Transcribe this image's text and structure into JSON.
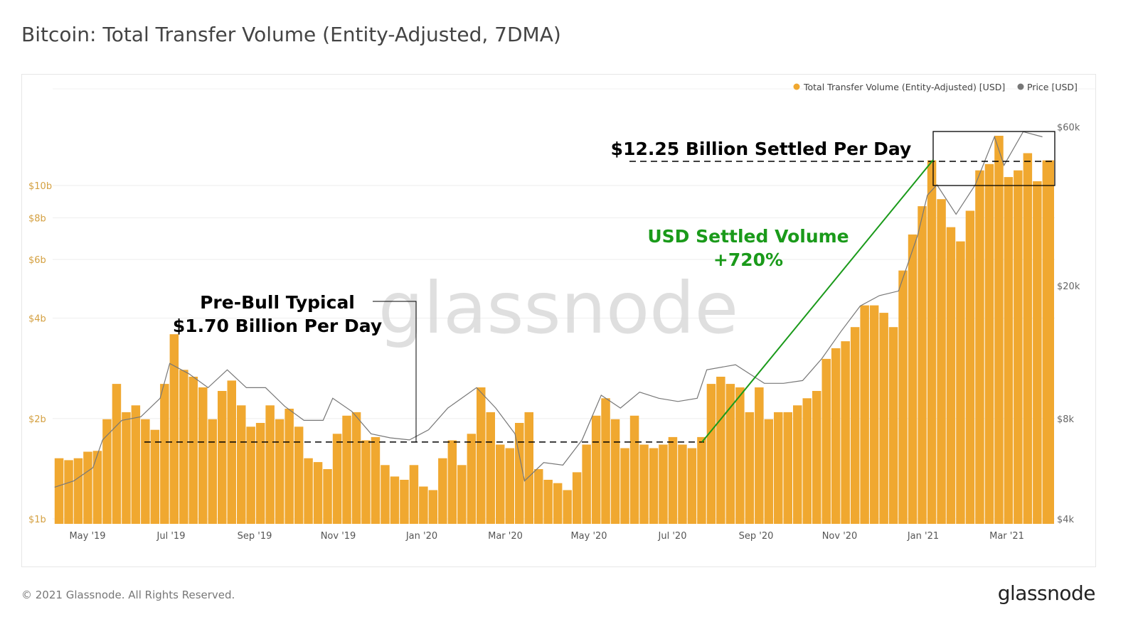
{
  "title": "Bitcoin: Total Transfer Volume (Entity-Adjusted, 7DMA)",
  "footer": "© 2021 Glassnode. All Rights Reserved.",
  "logo": "glassnode",
  "watermark": "glassnode",
  "colors": {
    "volume": "#f0a830",
    "price": "#777777",
    "annotation_green": "#1a9a1a",
    "annotation_black": "#000000"
  },
  "chart_data": {
    "type": "bar",
    "title": "Bitcoin: Total Transfer Volume (Entity-Adjusted, 7DMA)",
    "legend": {
      "placement": "top-right",
      "entries": [
        "Total Transfer Volume (Entity-Adjusted) [USD]",
        "Price [USD]"
      ]
    },
    "x_ticks": [
      "May '19",
      "Jul '19",
      "Sep '19",
      "Nov '19",
      "Jan '20",
      "Mar '20",
      "May '20",
      "Jul '20",
      "Sep '20",
      "Nov '20",
      "Jan '21",
      "Mar '21"
    ],
    "y_left": {
      "scale": "log",
      "range_billions": [
        1,
        10
      ],
      "ticks": [
        "$1b",
        "$2b",
        "$4b",
        "$6b",
        "$8b",
        "$10b"
      ],
      "tick_values": [
        1,
        2,
        4,
        6,
        8,
        10
      ]
    },
    "y_right": {
      "scale": "log",
      "range_thousands": [
        4,
        60
      ],
      "ticks": [
        "$4k",
        "$8k",
        "$20k",
        "$60k"
      ],
      "tick_values": [
        4,
        8,
        20,
        60
      ]
    },
    "grid": true,
    "volume_series": {
      "name": "Total Transfer Volume (Entity-Adjusted) [USD]",
      "unit": "billion USD",
      "points": [
        [
          "2019-04-07",
          1.52
        ],
        [
          "2019-04-14",
          1.5
        ],
        [
          "2019-04-21",
          1.52
        ],
        [
          "2019-04-28",
          1.59
        ],
        [
          "2019-05-05",
          1.6
        ],
        [
          "2019-05-12",
          1.99
        ],
        [
          "2019-05-19",
          2.54
        ],
        [
          "2019-05-26",
          2.09
        ],
        [
          "2019-06-02",
          2.19
        ],
        [
          "2019-06-09",
          1.99
        ],
        [
          "2019-06-16",
          1.85
        ],
        [
          "2019-06-23",
          2.54
        ],
        [
          "2019-06-30",
          3.58
        ],
        [
          "2019-07-07",
          2.8
        ],
        [
          "2019-07-14",
          2.67
        ],
        [
          "2019-07-21",
          2.48
        ],
        [
          "2019-07-28",
          1.99
        ],
        [
          "2019-08-04",
          2.42
        ],
        [
          "2019-08-11",
          2.6
        ],
        [
          "2019-08-18",
          2.19
        ],
        [
          "2019-08-25",
          1.89
        ],
        [
          "2019-09-01",
          1.94
        ],
        [
          "2019-09-08",
          2.19
        ],
        [
          "2019-09-15",
          1.99
        ],
        [
          "2019-09-22",
          2.14
        ],
        [
          "2019-09-29",
          1.89
        ],
        [
          "2019-10-06",
          1.52
        ],
        [
          "2019-10-13",
          1.48
        ],
        [
          "2019-10-20",
          1.41
        ],
        [
          "2019-10-27",
          1.8
        ],
        [
          "2019-11-03",
          2.04
        ],
        [
          "2019-11-10",
          2.09
        ],
        [
          "2019-11-17",
          1.72
        ],
        [
          "2019-11-24",
          1.76
        ],
        [
          "2019-12-01",
          1.45
        ],
        [
          "2019-12-08",
          1.34
        ],
        [
          "2019-12-15",
          1.31
        ],
        [
          "2019-12-22",
          1.45
        ],
        [
          "2019-12-29",
          1.25
        ],
        [
          "2020-01-05",
          1.22
        ],
        [
          "2020-01-12",
          1.52
        ],
        [
          "2020-01-19",
          1.72
        ],
        [
          "2020-01-26",
          1.45
        ],
        [
          "2020-02-02",
          1.8
        ],
        [
          "2020-02-09",
          2.48
        ],
        [
          "2020-02-16",
          2.09
        ],
        [
          "2020-02-23",
          1.67
        ],
        [
          "2020-03-01",
          1.63
        ],
        [
          "2020-03-08",
          1.94
        ],
        [
          "2020-03-15",
          2.09
        ],
        [
          "2020-03-22",
          1.41
        ],
        [
          "2020-03-29",
          1.31
        ],
        [
          "2020-04-05",
          1.28
        ],
        [
          "2020-04-12",
          1.22
        ],
        [
          "2020-04-19",
          1.38
        ],
        [
          "2020-04-26",
          1.67
        ],
        [
          "2020-05-03",
          2.04
        ],
        [
          "2020-05-10",
          2.3
        ],
        [
          "2020-05-17",
          1.99
        ],
        [
          "2020-05-24",
          1.63
        ],
        [
          "2020-05-31",
          2.04
        ],
        [
          "2020-06-07",
          1.67
        ],
        [
          "2020-06-14",
          1.63
        ],
        [
          "2020-06-21",
          1.67
        ],
        [
          "2020-06-28",
          1.76
        ],
        [
          "2020-07-05",
          1.67
        ],
        [
          "2020-07-12",
          1.63
        ],
        [
          "2020-07-19",
          1.76
        ],
        [
          "2020-07-26",
          2.54
        ],
        [
          "2020-08-02",
          2.67
        ],
        [
          "2020-08-09",
          2.54
        ],
        [
          "2020-08-16",
          2.48
        ],
        [
          "2020-08-23",
          2.09
        ],
        [
          "2020-08-30",
          2.48
        ],
        [
          "2020-09-06",
          1.99
        ],
        [
          "2020-09-13",
          2.09
        ],
        [
          "2020-09-20",
          2.09
        ],
        [
          "2020-09-27",
          2.19
        ],
        [
          "2020-10-04",
          2.3
        ],
        [
          "2020-10-11",
          2.42
        ],
        [
          "2020-10-18",
          3.02
        ],
        [
          "2020-10-25",
          3.25
        ],
        [
          "2020-11-01",
          3.41
        ],
        [
          "2020-11-08",
          3.76
        ],
        [
          "2020-11-15",
          4.37
        ],
        [
          "2020-11-22",
          4.37
        ],
        [
          "2020-11-29",
          4.15
        ],
        [
          "2020-12-06",
          3.76
        ],
        [
          "2020-12-13",
          5.56
        ],
        [
          "2020-12-20",
          7.13
        ],
        [
          "2020-12-27",
          8.67
        ],
        [
          "2021-01-03",
          11.9
        ],
        [
          "2021-01-10",
          9.1
        ],
        [
          "2021-01-17",
          7.5
        ],
        [
          "2021-01-24",
          6.8
        ],
        [
          "2021-01-31",
          8.4
        ],
        [
          "2021-02-07",
          11.1
        ],
        [
          "2021-02-14",
          11.6
        ],
        [
          "2021-02-21",
          14.1
        ],
        [
          "2021-02-28",
          10.6
        ],
        [
          "2021-03-07",
          11.1
        ],
        [
          "2021-03-14",
          12.5
        ],
        [
          "2021-03-21",
          10.3
        ],
        [
          "2021-03-28",
          11.9
        ]
      ]
    },
    "price_series": {
      "name": "Price [USD]",
      "unit": "thousand USD",
      "points": [
        [
          "2019-04-07",
          4.98
        ],
        [
          "2019-04-21",
          5.2
        ],
        [
          "2019-05-05",
          5.7
        ],
        [
          "2019-05-12",
          6.9
        ],
        [
          "2019-05-26",
          7.9
        ],
        [
          "2019-06-09",
          8.1
        ],
        [
          "2019-06-23",
          9.2
        ],
        [
          "2019-06-30",
          11.7
        ],
        [
          "2019-07-14",
          10.9
        ],
        [
          "2019-07-28",
          9.9
        ],
        [
          "2019-08-11",
          11.2
        ],
        [
          "2019-08-25",
          9.9
        ],
        [
          "2019-09-08",
          9.9
        ],
        [
          "2019-09-22",
          8.7
        ],
        [
          "2019-10-06",
          7.9
        ],
        [
          "2019-10-20",
          7.9
        ],
        [
          "2019-10-27",
          9.2
        ],
        [
          "2019-11-10",
          8.4
        ],
        [
          "2019-11-24",
          7.2
        ],
        [
          "2019-12-08",
          7.0
        ],
        [
          "2019-12-22",
          6.9
        ],
        [
          "2020-01-05",
          7.4
        ],
        [
          "2020-01-19",
          8.6
        ],
        [
          "2020-02-09",
          9.9
        ],
        [
          "2020-02-23",
          8.6
        ],
        [
          "2020-03-08",
          7.2
        ],
        [
          "2020-03-15",
          5.2
        ],
        [
          "2020-03-29",
          5.9
        ],
        [
          "2020-04-12",
          5.8
        ],
        [
          "2020-04-26",
          6.9
        ],
        [
          "2020-05-10",
          9.4
        ],
        [
          "2020-05-24",
          8.6
        ],
        [
          "2020-06-07",
          9.6
        ],
        [
          "2020-06-21",
          9.2
        ],
        [
          "2020-07-05",
          9.0
        ],
        [
          "2020-07-19",
          9.2
        ],
        [
          "2020-07-26",
          11.2
        ],
        [
          "2020-08-16",
          11.6
        ],
        [
          "2020-09-06",
          10.2
        ],
        [
          "2020-09-20",
          10.2
        ],
        [
          "2020-10-04",
          10.4
        ],
        [
          "2020-10-18",
          12.1
        ],
        [
          "2020-11-01",
          14.6
        ],
        [
          "2020-11-15",
          17.4
        ],
        [
          "2020-11-29",
          18.7
        ],
        [
          "2020-12-13",
          19.3
        ],
        [
          "2020-12-27",
          28.4
        ],
        [
          "2021-01-03",
          37.4
        ],
        [
          "2021-01-10",
          40.2
        ],
        [
          "2021-01-24",
          32.8
        ],
        [
          "2021-02-07",
          40.2
        ],
        [
          "2021-02-21",
          56
        ],
        [
          "2021-02-28",
          46
        ],
        [
          "2021-03-14",
          58
        ],
        [
          "2021-03-28",
          56
        ]
      ]
    },
    "annotations": {
      "pre_bull_line1": "Pre-Bull Typical",
      "pre_bull_line2": "$1.70 Billion Per Day",
      "pre_bull_value_billions": 1.7,
      "peak_label": "$12.25 Billion Settled Per Day",
      "peak_value_billions": 12.25,
      "growth_line1": "USD Settled Volume",
      "growth_line2": "+720%"
    }
  }
}
